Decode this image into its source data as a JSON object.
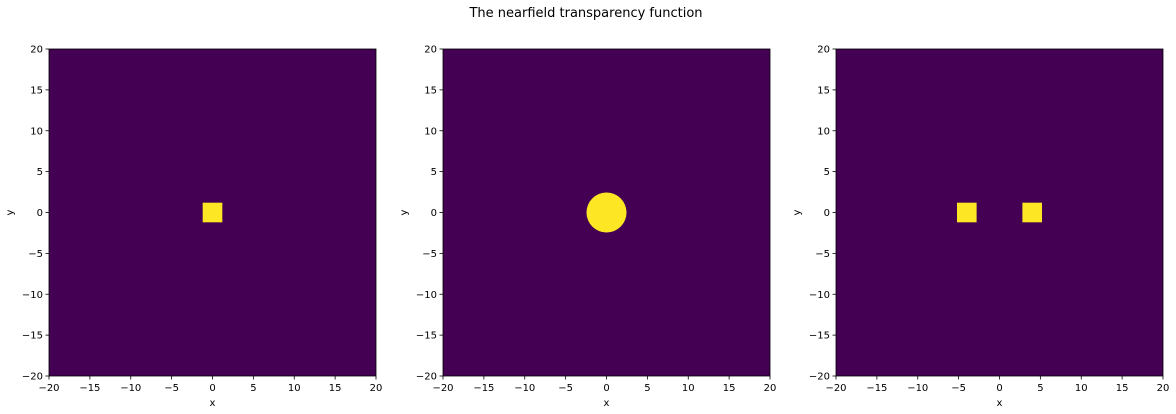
{
  "figure": {
    "title": "The nearfield transparency function"
  },
  "colors": {
    "background_value": "#440154",
    "object_value": "#fde725",
    "axis": "#000000"
  },
  "chart_data": [
    {
      "type": "heatmap",
      "xlabel": "x",
      "ylabel": "y",
      "xlim": [
        -20,
        20
      ],
      "ylim": [
        -20,
        20
      ],
      "xticks": [
        -20,
        -15,
        -10,
        -5,
        0,
        5,
        10,
        15,
        20
      ],
      "yticks": [
        -20,
        -15,
        -10,
        -5,
        0,
        5,
        10,
        15,
        20
      ],
      "xtick_labels": [
        "−20",
        "−15",
        "−10",
        "−5",
        "0",
        "5",
        "10",
        "15",
        "20"
      ],
      "ytick_labels": [
        "−20",
        "−15",
        "−10",
        "−5",
        "0",
        "5",
        "10",
        "15",
        "20"
      ],
      "grid": false,
      "background_value": 0,
      "shapes": [
        {
          "kind": "square",
          "center": [
            0,
            0
          ],
          "side": 2.4,
          "value": 1
        }
      ]
    },
    {
      "type": "heatmap",
      "xlabel": "x",
      "ylabel": "y",
      "xlim": [
        -20,
        20
      ],
      "ylim": [
        -20,
        20
      ],
      "xticks": [
        -20,
        -15,
        -10,
        -5,
        0,
        5,
        10,
        15,
        20
      ],
      "yticks": [
        -20,
        -15,
        -10,
        -5,
        0,
        5,
        10,
        15,
        20
      ],
      "xtick_labels": [
        "−20",
        "−15",
        "−10",
        "−5",
        "0",
        "5",
        "10",
        "15",
        "20"
      ],
      "ytick_labels": [
        "−20",
        "−15",
        "−10",
        "−5",
        "0",
        "5",
        "10",
        "15",
        "20"
      ],
      "grid": false,
      "background_value": 0,
      "shapes": [
        {
          "kind": "circle",
          "center": [
            0,
            0
          ],
          "radius": 2.45,
          "value": 1
        }
      ]
    },
    {
      "type": "heatmap",
      "xlabel": "x",
      "ylabel": "y",
      "xlim": [
        -20,
        20
      ],
      "ylim": [
        -20,
        20
      ],
      "xticks": [
        -20,
        -15,
        -10,
        -5,
        0,
        5,
        10,
        15,
        20
      ],
      "yticks": [
        -20,
        -15,
        -10,
        -5,
        0,
        5,
        10,
        15,
        20
      ],
      "xtick_labels": [
        "−20",
        "−15",
        "−10",
        "−5",
        "0",
        "5",
        "10",
        "15",
        "20"
      ],
      "ytick_labels": [
        "−20",
        "−15",
        "−10",
        "−5",
        "0",
        "5",
        "10",
        "15",
        "20"
      ],
      "grid": false,
      "background_value": 0,
      "shapes": [
        {
          "kind": "square",
          "center": [
            -4,
            0
          ],
          "side": 2.4,
          "value": 1
        },
        {
          "kind": "square",
          "center": [
            4,
            0
          ],
          "side": 2.4,
          "value": 1
        }
      ]
    }
  ]
}
